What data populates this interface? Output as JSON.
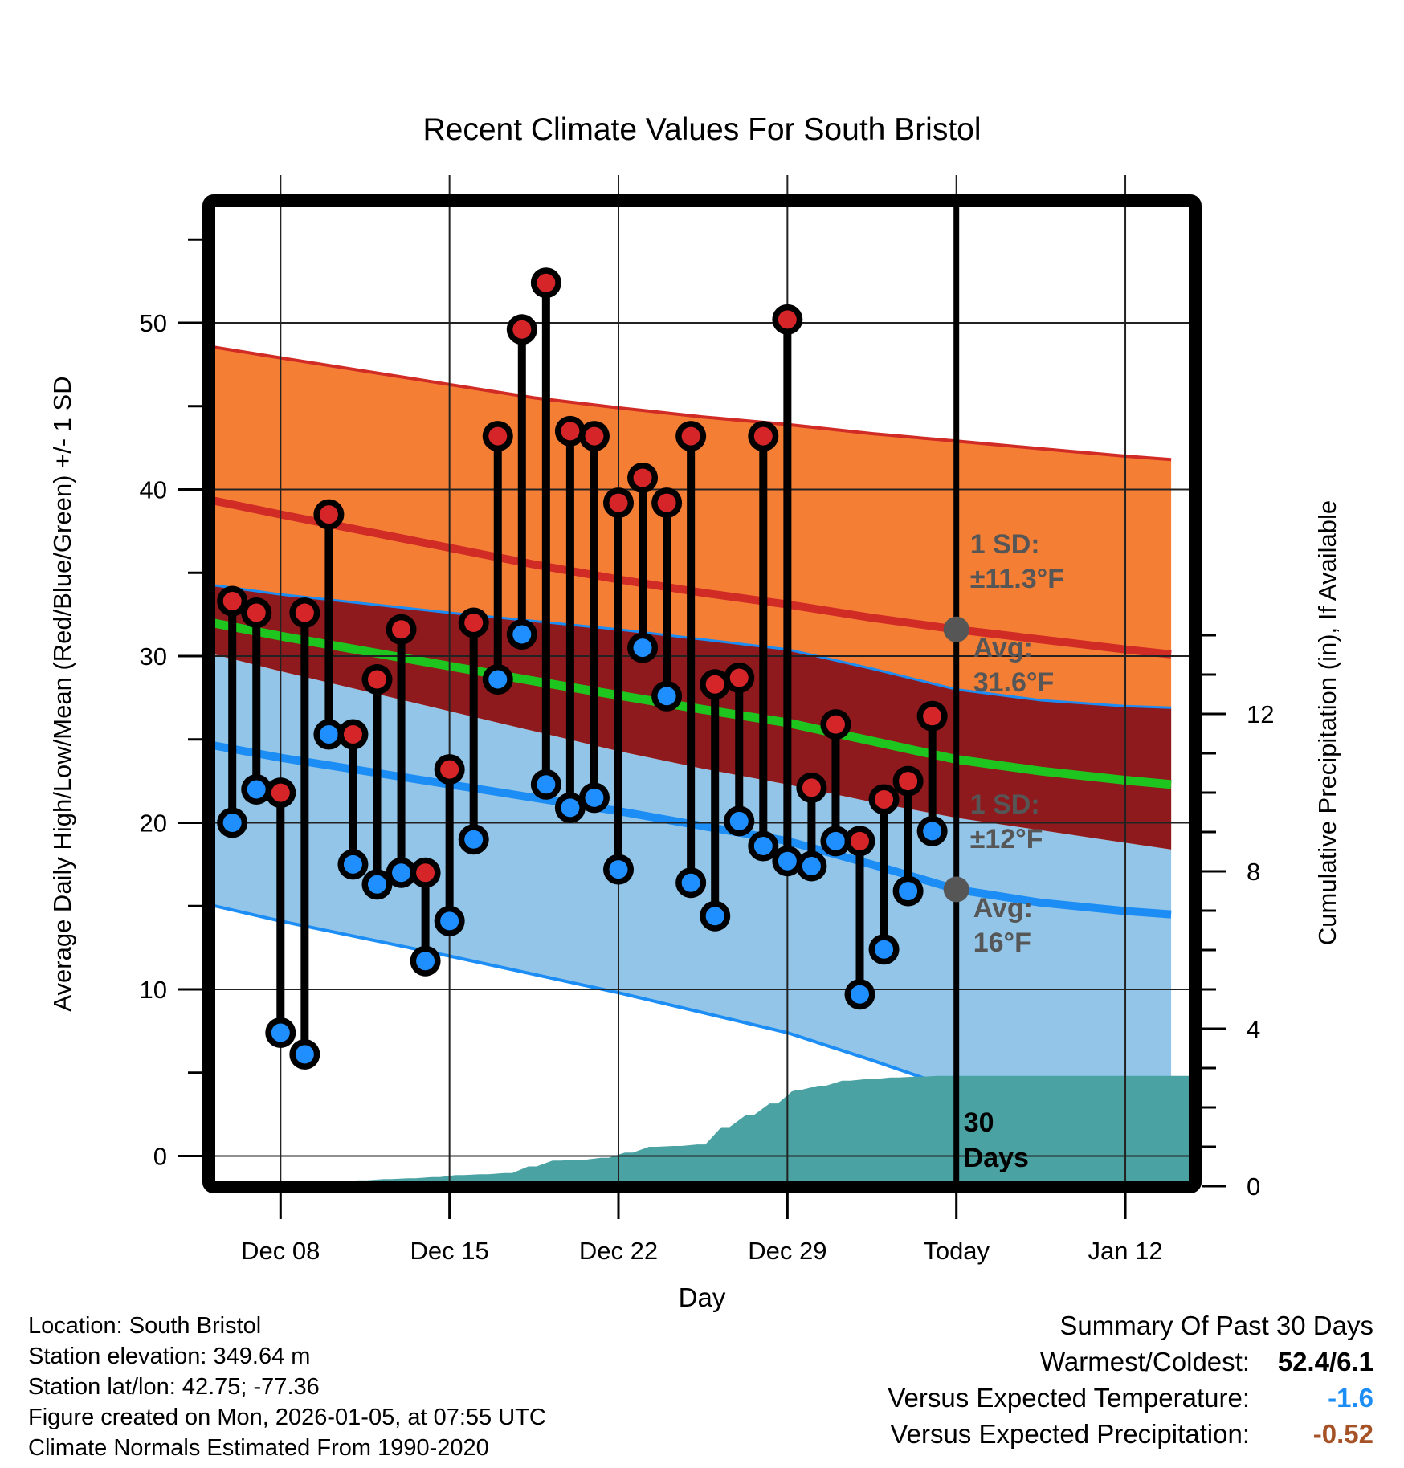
{
  "chart_data": {
    "type": "line",
    "title": "Recent Climate Values For South Bristol",
    "xlabel": "Day",
    "ylabel_left": "Average Daily High/Low/Mean (Red/Blue/Green) +/- 1 SD",
    "ylabel_right": "Cumulative Precipitation (in), If Available",
    "x_ticks": [
      {
        "day_offset": 0,
        "label": "Dec 08"
      },
      {
        "day_offset": 7,
        "label": "Dec 15"
      },
      {
        "day_offset": 14,
        "label": "Dec 22"
      },
      {
        "day_offset": 21,
        "label": "Dec 29"
      },
      {
        "day_offset": 28,
        "label": "Today"
      },
      {
        "day_offset": 35,
        "label": "Jan 12"
      }
    ],
    "temp_axis": {
      "ticks": [
        0,
        10,
        20,
        30,
        40,
        50
      ],
      "minor_ticks": [
        5,
        15,
        25,
        35,
        45,
        55
      ],
      "unit": "°F"
    },
    "precip_axis": {
      "ticks": [
        0,
        4,
        8,
        12
      ],
      "minor_step_in": 1,
      "unit": "in"
    },
    "daily": {
      "dates": [
        "Dec 06",
        "Dec 07",
        "Dec 08",
        "Dec 09",
        "Dec 10",
        "Dec 11",
        "Dec 12",
        "Dec 13",
        "Dec 14",
        "Dec 15",
        "Dec 16",
        "Dec 17",
        "Dec 18",
        "Dec 19",
        "Dec 20",
        "Dec 21",
        "Dec 22",
        "Dec 23",
        "Dec 24",
        "Dec 25",
        "Dec 26",
        "Dec 27",
        "Dec 28",
        "Dec 29",
        "Dec 30",
        "Dec 31",
        "Jan 01",
        "Jan 02",
        "Jan 03",
        "Jan 04"
      ],
      "high": [
        33.3,
        32.6,
        21.8,
        32.6,
        38.5,
        25.3,
        28.6,
        31.6,
        17.0,
        23.2,
        32.0,
        43.2,
        49.6,
        52.4,
        43.5,
        43.2,
        39.2,
        40.7,
        39.2,
        43.2,
        28.3,
        28.7,
        43.2,
        50.2,
        22.1,
        25.9,
        18.9,
        21.4,
        22.5,
        26.4
      ],
      "low": [
        20.0,
        22.0,
        7.4,
        6.1,
        25.3,
        17.5,
        16.3,
        17.0,
        11.7,
        14.1,
        19.0,
        28.6,
        31.3,
        22.3,
        20.9,
        21.5,
        17.2,
        30.5,
        27.6,
        16.4,
        14.4,
        20.1,
        18.6,
        17.7,
        17.4,
        18.9,
        9.7,
        12.4,
        15.9,
        19.5
      ],
      "cum_precip": [
        0.02,
        0.04,
        0.06,
        0.1,
        0.12,
        0.15,
        0.18,
        0.2,
        0.23,
        0.28,
        0.3,
        0.33,
        0.5,
        0.65,
        0.67,
        0.72,
        0.85,
        1.0,
        1.02,
        1.06,
        1.5,
        1.8,
        2.1,
        2.45,
        2.55,
        2.68,
        2.72,
        2.76,
        2.78,
        2.8
      ]
    },
    "normals": {
      "sample_day_offsets": [
        -3,
        0,
        3.5,
        7,
        10.5,
        14,
        17.5,
        21,
        24.5,
        28,
        31.5,
        35,
        36.9
      ],
      "avg_high": [
        39.4,
        38.5,
        37.5,
        36.5,
        35.5,
        34.6,
        33.8,
        33.1,
        32.3,
        31.6,
        31.0,
        30.4,
        30.1
      ],
      "sd_high": [
        9.2,
        9.4,
        9.6,
        9.8,
        10.0,
        10.3,
        10.55,
        10.8,
        11.05,
        11.3,
        11.45,
        11.6,
        11.7
      ],
      "avg_low": [
        24.7,
        23.9,
        23.1,
        22.3,
        21.5,
        20.7,
        19.8,
        18.9,
        17.5,
        16.0,
        15.2,
        14.7,
        14.5
      ],
      "sd_low": [
        9.6,
        9.8,
        10.05,
        10.3,
        10.6,
        10.9,
        11.2,
        11.5,
        11.75,
        12.0,
        12.15,
        12.3,
        12.4
      ]
    },
    "today_marker": {
      "day_offset": 28,
      "avg_high": 31.6,
      "avg_low": 16.0,
      "high_annotation": [
        "1 SD:",
        "±11.3°F",
        "Avg:",
        "31.6°F"
      ],
      "low_annotation": [
        "1 SD:",
        "±12°F",
        "Avg:",
        "16°F"
      ],
      "window_label": [
        "30",
        "Days"
      ]
    },
    "colors": {
      "high_band": "#F57E35",
      "high_line": "#D12B26",
      "overlap_band": "#8E1A1D",
      "mean_line": "#1FC51F",
      "low_band": "#92C5E8",
      "low_line": "#1C8DF5",
      "dot_high": "#D62528",
      "dot_low": "#1F8FFF",
      "precip_fill": "#4BA2A3",
      "annotation_gray": "#565656",
      "grid": "#222222",
      "frame": "#000000"
    }
  },
  "footer": {
    "lines": [
      "Location: South Bristol",
      "Station elevation: 349.64 m",
      "Station lat/lon: 42.75; -77.36",
      "Figure created on Mon, 2026-01-05, at 07:55 UTC",
      "Climate Normals Estimated From 1990-2020"
    ]
  },
  "summary": {
    "title": "Summary Of Past 30 Days",
    "rows": [
      {
        "label": "Warmest/Coldest:",
        "value": "52.4/6.1",
        "color": "#000000"
      },
      {
        "label": "Versus Expected Temperature:",
        "value": "-1.6",
        "color": "#1C8DF5"
      },
      {
        "label": "Versus Expected Precipitation:",
        "value": "-0.52",
        "color": "#A65227"
      }
    ]
  }
}
